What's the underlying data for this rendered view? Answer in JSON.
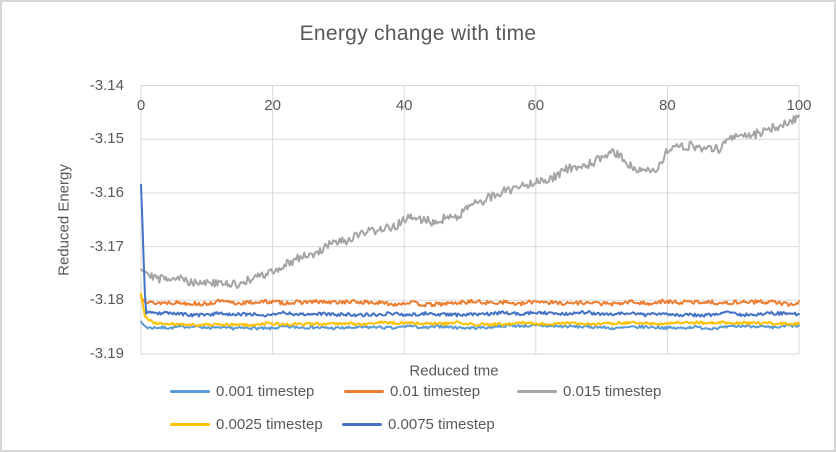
{
  "chart_data": {
    "type": "line",
    "title": "Energy change with time",
    "xlabel": "Reduced tme",
    "ylabel": "Reduced Energy",
    "xlim": [
      0,
      100
    ],
    "ylim": [
      -3.19,
      -3.14
    ],
    "x_ticks": [
      0,
      20,
      40,
      60,
      80,
      100
    ],
    "x_tick_labels": [
      "0",
      "20",
      "40",
      "60",
      "80",
      "100"
    ],
    "y_ticks": [
      -3.14,
      -3.15,
      -3.16,
      -3.17,
      -3.18,
      -3.19
    ],
    "y_tick_labels": [
      "-3.14",
      "-3.15",
      "-3.16",
      "-3.17",
      "-3.18",
      "-3.19"
    ],
    "grid": true,
    "legend_position": "bottom",
    "gridline_color": "#d9d9d9",
    "text_color": "#595959",
    "series": [
      {
        "name": "0.001 timestep",
        "color": "#5B9BD5",
        "noise_amplitude": 0.00035,
        "seed": 7,
        "anchors": [
          [
            0,
            -3.184
          ],
          [
            1,
            -3.1849
          ],
          [
            20,
            -3.1851
          ],
          [
            40,
            -3.185
          ],
          [
            60,
            -3.1849
          ],
          [
            80,
            -3.1851
          ],
          [
            100,
            -3.1849
          ]
        ]
      },
      {
        "name": "0.01 timestep",
        "color": "#ED7D31",
        "noise_amplitude": 0.0005,
        "seed": 13,
        "anchors": [
          [
            0,
            -3.1792
          ],
          [
            1,
            -3.1804
          ],
          [
            20,
            -3.1805
          ],
          [
            40,
            -3.1806
          ],
          [
            60,
            -3.1804
          ],
          [
            80,
            -3.1805
          ],
          [
            100,
            -3.1805
          ]
        ]
      },
      {
        "name": "0.015 timestep",
        "color": "#A5A5A5",
        "noise_amplitude": 0.0011,
        "seed": 29,
        "anchors": [
          [
            0,
            -3.1735
          ],
          [
            3,
            -3.1758
          ],
          [
            8,
            -3.1768
          ],
          [
            12,
            -3.1772
          ],
          [
            16,
            -3.1764
          ],
          [
            20,
            -3.175
          ],
          [
            24,
            -3.1722
          ],
          [
            28,
            -3.1706
          ],
          [
            32,
            -3.169
          ],
          [
            36,
            -3.1672
          ],
          [
            40,
            -3.1651
          ],
          [
            44,
            -3.1657
          ],
          [
            48,
            -3.1636
          ],
          [
            52,
            -3.162
          ],
          [
            56,
            -3.1597
          ],
          [
            60,
            -3.1572
          ],
          [
            64,
            -3.1565
          ],
          [
            68,
            -3.1542
          ],
          [
            72,
            -3.1527
          ],
          [
            75,
            -3.1556
          ],
          [
            78,
            -3.1561
          ],
          [
            80,
            -3.1522
          ],
          [
            84,
            -3.1516
          ],
          [
            88,
            -3.1521
          ],
          [
            90,
            -3.1492
          ],
          [
            94,
            -3.1484
          ],
          [
            97,
            -3.1477
          ],
          [
            100,
            -3.1452
          ]
        ]
      },
      {
        "name": "0.0025 timestep",
        "color": "#FFC000",
        "noise_amplitude": 0.00035,
        "seed": 41,
        "anchors": [
          [
            0,
            -3.179
          ],
          [
            0.6,
            -3.1832
          ],
          [
            2,
            -3.1843
          ],
          [
            20,
            -3.1845
          ],
          [
            40,
            -3.1843
          ],
          [
            60,
            -3.1844
          ],
          [
            80,
            -3.1843
          ],
          [
            100,
            -3.1843
          ]
        ]
      },
      {
        "name": "0.0075 timestep",
        "color": "#4472C4",
        "noise_amplitude": 0.0004,
        "seed": 53,
        "anchors": [
          [
            0,
            -3.158
          ],
          [
            0.7,
            -3.1821
          ],
          [
            2,
            -3.1826
          ],
          [
            20,
            -3.1825
          ],
          [
            40,
            -3.1826
          ],
          [
            60,
            -3.1824
          ],
          [
            80,
            -3.1825
          ],
          [
            100,
            -3.1825
          ]
        ]
      }
    ]
  }
}
